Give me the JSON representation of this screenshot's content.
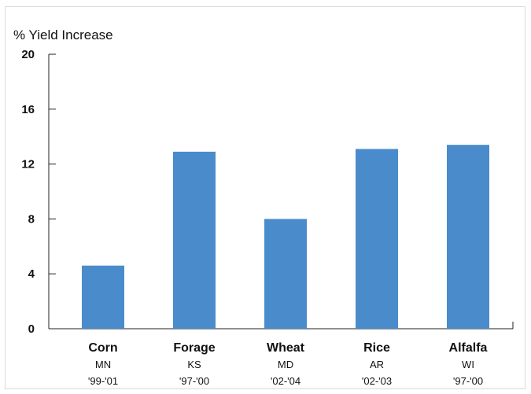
{
  "chart_data": {
    "type": "bar",
    "ylabel": "% Yield Increase",
    "xlabel": "",
    "ylim": [
      0,
      20
    ],
    "yticks": [
      0,
      4,
      8,
      12,
      16,
      20
    ],
    "categories": [
      "Corn",
      "Forage",
      "Wheat",
      "Rice",
      "Alfalfa"
    ],
    "states": [
      "MN",
      "KS",
      "MD",
      "AR",
      "WI"
    ],
    "years": [
      "'99-'01",
      "'97-'00",
      "'02-'04",
      "'02-'03",
      "'97-'00"
    ],
    "values": [
      4.6,
      12.9,
      8.0,
      13.1,
      13.4
    ],
    "bar_color": "#4a8ccb",
    "grid": false,
    "legend": "none"
  }
}
